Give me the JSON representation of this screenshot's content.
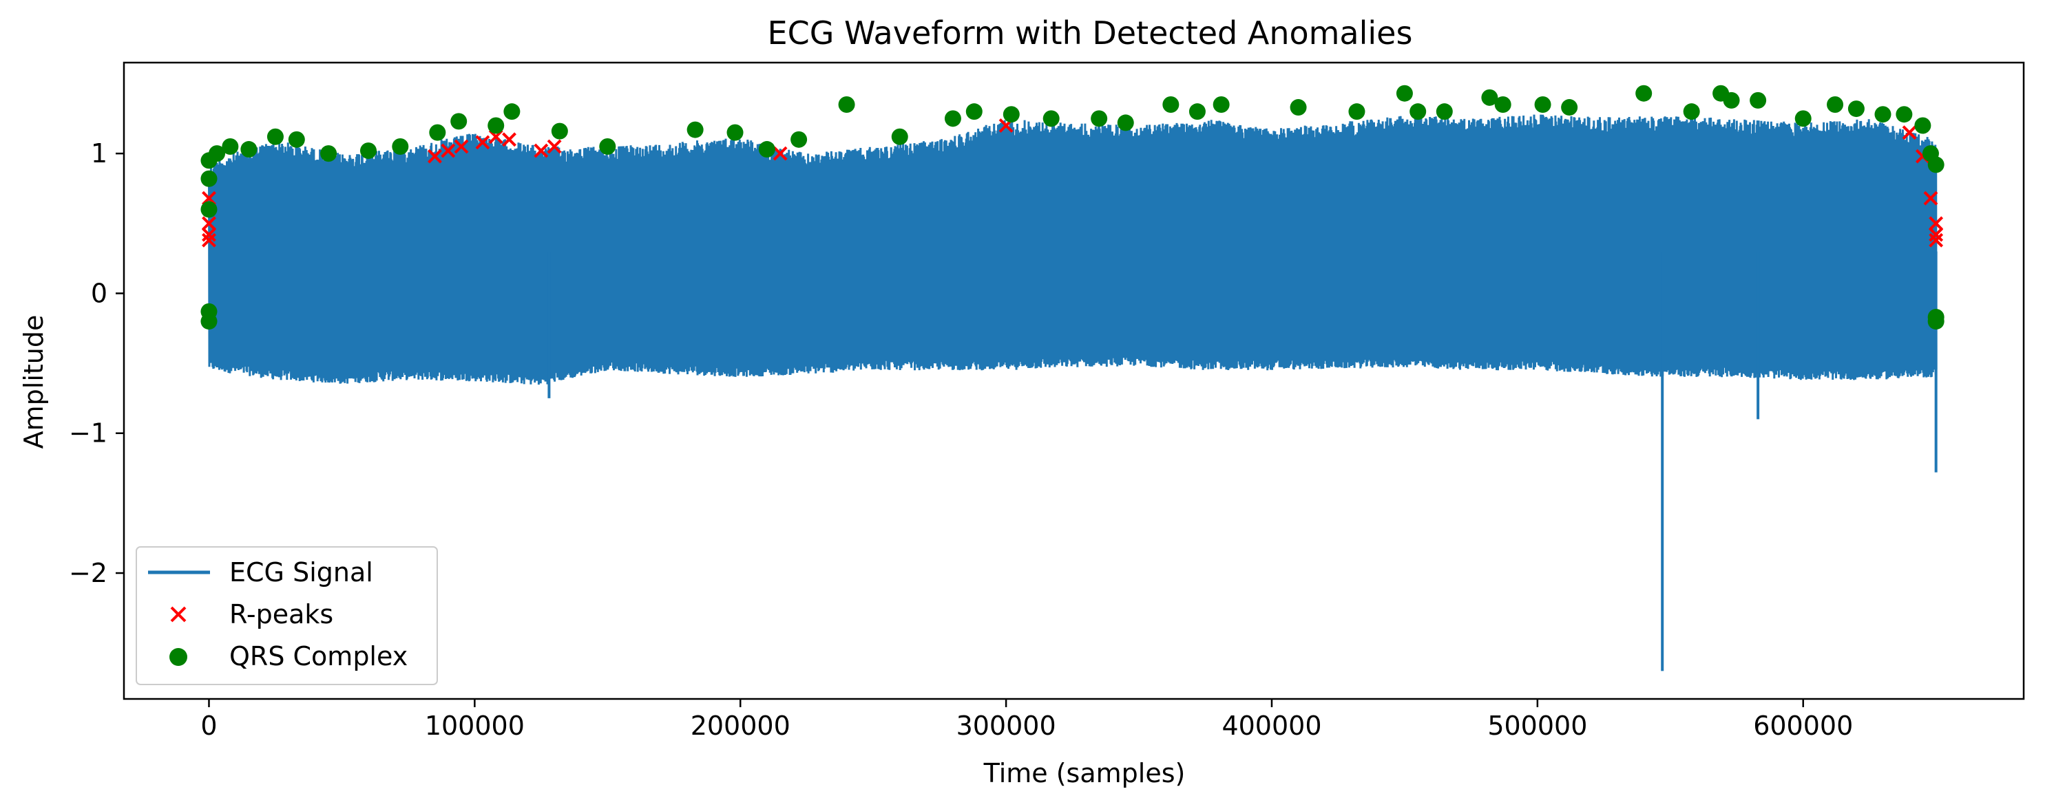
{
  "chart_data": {
    "type": "line",
    "title": "ECG Waveform with Detected Anomalies",
    "xlabel": "Time (samples)",
    "ylabel": "Amplitude",
    "xlim": [
      -32000,
      683000
    ],
    "ylim": [
      -2.9,
      1.65
    ],
    "x_ticks": [
      0,
      100000,
      200000,
      300000,
      400000,
      500000,
      600000
    ],
    "y_ticks": [
      -2,
      -1,
      0,
      1
    ],
    "y_tick_labels": [
      "−2",
      "−1",
      "0",
      "1"
    ],
    "grid": false,
    "legend_position": "lower-left",
    "colors": {
      "signal": "#1f77b4",
      "r_peaks": "#ff0000",
      "qrs": "#008000"
    },
    "series": [
      {
        "name": "ECG Signal",
        "kind": "line",
        "x": [
          0,
          25000,
          50000,
          75000,
          100000,
          125000,
          150000,
          175000,
          200000,
          225000,
          250000,
          275000,
          300000,
          325000,
          350000,
          375000,
          400000,
          425000,
          450000,
          475000,
          500000,
          525000,
          550000,
          575000,
          600000,
          625000,
          650000
        ],
        "y_max": [
          0.95,
          1.1,
          1.0,
          1.05,
          1.15,
          1.05,
          1.05,
          1.08,
          1.12,
          1.0,
          1.05,
          1.1,
          1.25,
          1.22,
          1.2,
          1.25,
          1.18,
          1.22,
          1.28,
          1.25,
          1.28,
          1.26,
          1.27,
          1.25,
          1.22,
          1.25,
          1.1
        ],
        "y_min": [
          -0.55,
          -0.62,
          -0.65,
          -0.62,
          -0.63,
          -0.66,
          -0.55,
          -0.58,
          -0.6,
          -0.58,
          -0.55,
          -0.55,
          -0.55,
          -0.53,
          -0.52,
          -0.55,
          -0.55,
          -0.54,
          -0.53,
          -0.55,
          -0.55,
          -0.58,
          -0.6,
          -0.6,
          -0.62,
          -0.62,
          -0.6
        ],
        "spikes": [
          {
            "x": 547000,
            "y": -2.7
          },
          {
            "x": 583000,
            "y": -0.9
          },
          {
            "x": 650000,
            "y": -1.28
          },
          {
            "x": 128000,
            "y": -0.75
          }
        ]
      },
      {
        "name": "R-peaks",
        "kind": "scatter",
        "marker": "x",
        "x": [
          0,
          0,
          0,
          0,
          85000,
          90000,
          95000,
          103000,
          108000,
          113000,
          125000,
          130000,
          215000,
          300000,
          640000,
          645000,
          648000,
          650000,
          650000,
          650000
        ],
        "y": [
          0.68,
          0.5,
          0.42,
          0.38,
          0.98,
          1.02,
          1.05,
          1.08,
          1.12,
          1.1,
          1.02,
          1.05,
          1.0,
          1.2,
          1.15,
          0.98,
          0.68,
          0.5,
          0.42,
          0.38
        ]
      },
      {
        "name": "QRS Complex",
        "kind": "scatter",
        "marker": "o",
        "x": [
          0,
          0,
          0,
          0,
          0,
          3000,
          8000,
          15000,
          25000,
          33000,
          45000,
          60000,
          72000,
          86000,
          94000,
          108000,
          114000,
          132000,
          150000,
          183000,
          198000,
          210000,
          222000,
          240000,
          260000,
          280000,
          288000,
          302000,
          317000,
          335000,
          345000,
          362000,
          372000,
          381000,
          410000,
          432000,
          450000,
          455000,
          465000,
          482000,
          487000,
          502000,
          512000,
          540000,
          558000,
          569000,
          573000,
          583000,
          600000,
          612000,
          620000,
          630000,
          638000,
          645000,
          648000,
          650000,
          650000,
          650000
        ],
        "y": [
          0.95,
          0.82,
          0.6,
          -0.13,
          -0.2,
          1.0,
          1.05,
          1.03,
          1.12,
          1.1,
          1.0,
          1.02,
          1.05,
          1.15,
          1.23,
          1.2,
          1.3,
          1.16,
          1.05,
          1.17,
          1.15,
          1.03,
          1.1,
          1.35,
          1.12,
          1.25,
          1.3,
          1.28,
          1.25,
          1.25,
          1.22,
          1.35,
          1.3,
          1.35,
          1.33,
          1.3,
          1.43,
          1.3,
          1.3,
          1.4,
          1.35,
          1.35,
          1.33,
          1.43,
          1.3,
          1.43,
          1.38,
          1.38,
          1.25,
          1.35,
          1.32,
          1.28,
          1.28,
          1.2,
          1.0,
          0.92,
          -0.17,
          -0.2
        ]
      }
    ]
  }
}
